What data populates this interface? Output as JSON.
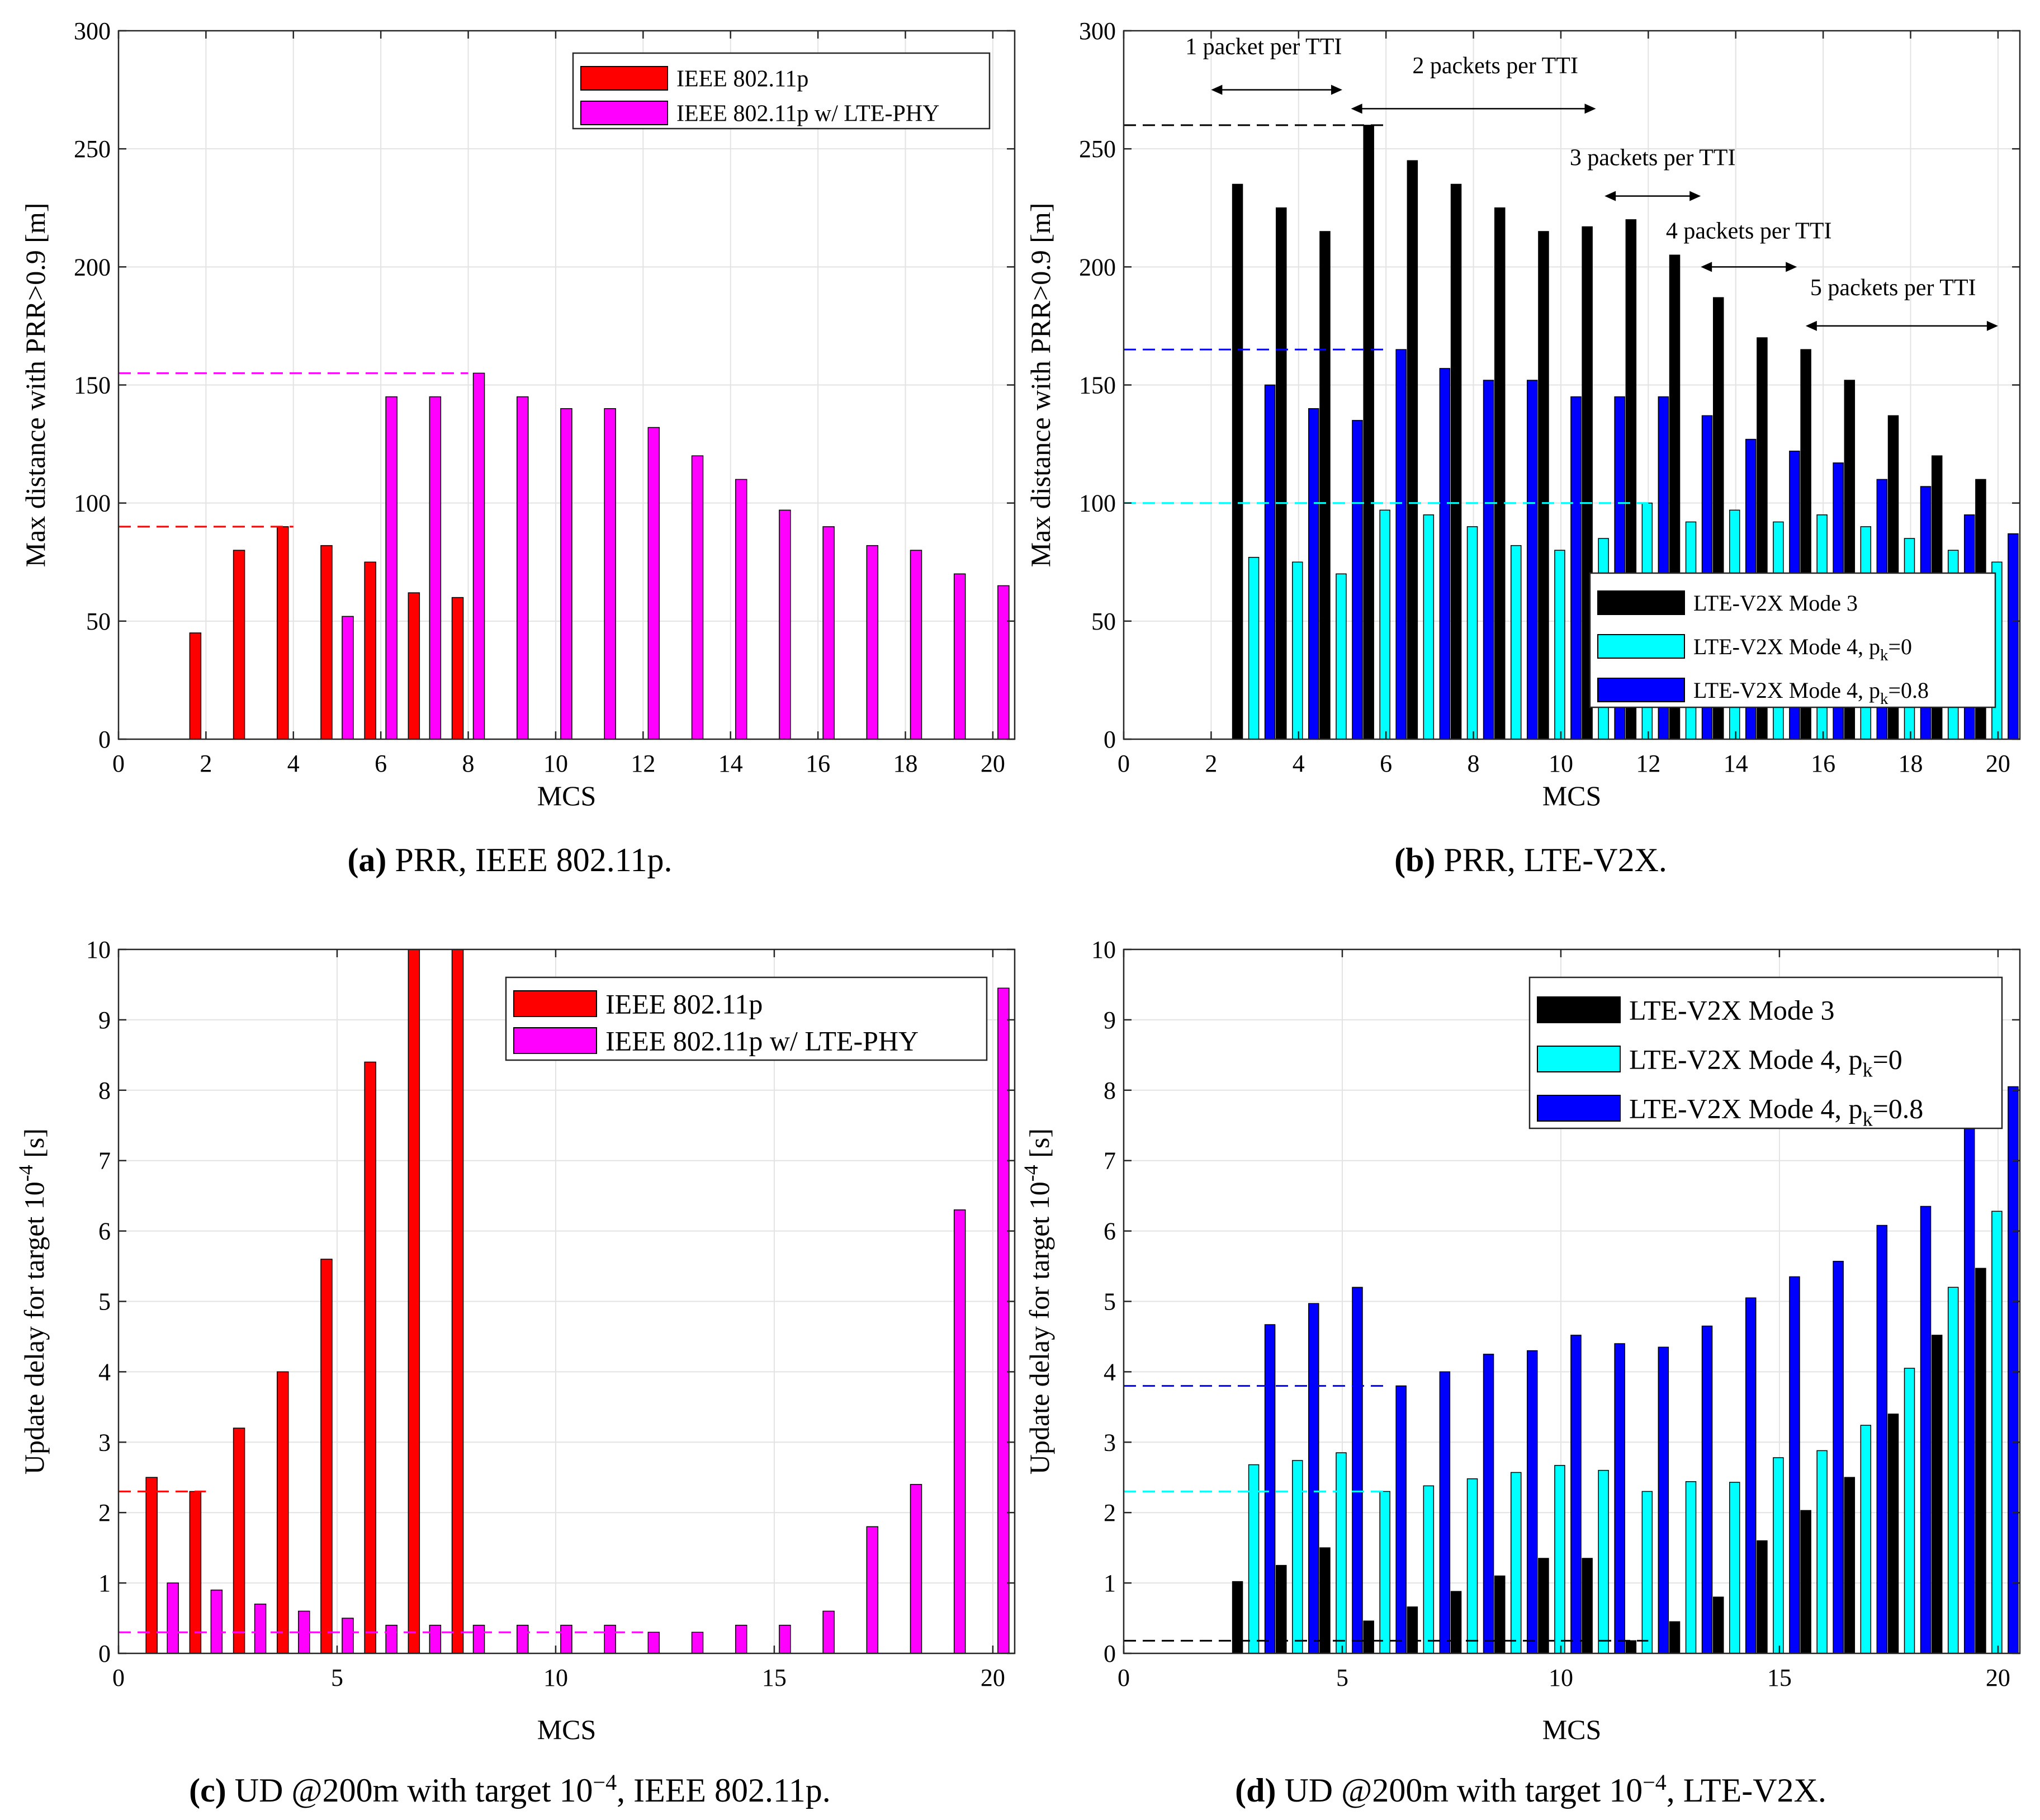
{
  "chart_data": [
    {
      "id": "a",
      "type": "bar",
      "caption": {
        "letter": "(a)",
        "text": "PRR, IEEE 802.11p."
      },
      "xlabel": "MCS",
      "ylabel": "Max distance with PRR>0.9 [m]",
      "xlim": [
        0,
        20.5
      ],
      "ylim": [
        0,
        300
      ],
      "xticks": [
        0,
        2,
        4,
        6,
        8,
        10,
        12,
        14,
        16,
        18,
        20
      ],
      "yticks": [
        0,
        50,
        100,
        150,
        200,
        250,
        300
      ],
      "grid": true,
      "legend_position": "top-right",
      "series": [
        {
          "name": "IEEE 802.11p",
          "color": "#ff0000",
          "x": [
            1,
            2,
            3,
            4,
            5,
            6,
            7,
            8
          ],
          "values": [
            0,
            45,
            80,
            90,
            82,
            75,
            62,
            60
          ]
        },
        {
          "name": "IEEE 802.11p w/ LTE-PHY",
          "color": "#ff00ff",
          "x": [
            1,
            2,
            3,
            4,
            5,
            6,
            7,
            8,
            9,
            10,
            11,
            12,
            13,
            14,
            15,
            16,
            17,
            18,
            19,
            20
          ],
          "values": [
            0,
            0,
            0,
            0,
            52,
            145,
            145,
            155,
            145,
            140,
            140,
            132,
            120,
            110,
            97,
            90,
            82,
            80,
            70,
            65
          ]
        }
      ],
      "reference_lines": [
        {
          "y": 155,
          "x_end": 8,
          "color": "#ff00ff"
        },
        {
          "y": 90,
          "x_end": 4,
          "color": "#ff0000"
        }
      ]
    },
    {
      "id": "b",
      "type": "bar",
      "caption": {
        "letter": "(b)",
        "text": "PRR, LTE-V2X."
      },
      "xlabel": "MCS",
      "ylabel": "Max distance with PRR>0.9 [m]",
      "xlim": [
        0,
        20.5
      ],
      "ylim": [
        0,
        300
      ],
      "xticks": [
        0,
        2,
        4,
        6,
        8,
        10,
        12,
        14,
        16,
        18,
        20
      ],
      "yticks": [
        0,
        50,
        100,
        150,
        200,
        250,
        300
      ],
      "grid": true,
      "legend_position": "bottom-right",
      "series": [
        {
          "name": "LTE-V2X Mode 3",
          "color": "#000000",
          "x": [
            3,
            4,
            5,
            6,
            7,
            8,
            9,
            10,
            11,
            12,
            13,
            14,
            15,
            16,
            17,
            18,
            19,
            20
          ],
          "values": [
            235,
            225,
            215,
            260,
            245,
            235,
            225,
            215,
            217,
            220,
            205,
            187,
            170,
            165,
            152,
            137,
            120,
            110
          ]
        },
        {
          "name": "LTE-V2X Mode 4, p_k=0",
          "color": "#00ffff",
          "x": [
            3,
            4,
            5,
            6,
            7,
            8,
            9,
            10,
            11,
            12,
            13,
            14,
            15,
            16,
            17,
            18,
            19,
            20
          ],
          "values": [
            77,
            75,
            70,
            97,
            95,
            90,
            82,
            80,
            85,
            100,
            92,
            97,
            92,
            95,
            90,
            85,
            80,
            75
          ]
        },
        {
          "name": "LTE-V2X Mode 4, p_k=0.8",
          "color": "#0000ff",
          "x": [
            3,
            4,
            5,
            6,
            7,
            8,
            9,
            10,
            11,
            12,
            13,
            14,
            15,
            16,
            17,
            18,
            19,
            20
          ],
          "values": [
            150,
            140,
            135,
            165,
            157,
            152,
            152,
            145,
            145,
            145,
            137,
            127,
            122,
            117,
            110,
            107,
            95,
            87
          ]
        }
      ],
      "reference_lines": [
        {
          "y": 260,
          "x_end": 6,
          "color": "#000000"
        },
        {
          "y": 165,
          "x_end": 6,
          "color": "#0000ff"
        },
        {
          "y": 100,
          "x_end": 12,
          "color": "#00ffff"
        }
      ],
      "annotations": [
        {
          "text": "1 packet per TTI",
          "label_x": 3.2,
          "label_y": 290,
          "arrow_x": [
            2,
            5
          ],
          "arrow_y": 275
        },
        {
          "text": "2 packets per TTI",
          "label_x": 8.5,
          "label_y": 282,
          "arrow_x": [
            5.2,
            10.8
          ],
          "arrow_y": 267
        },
        {
          "text": "3 packets per TTI",
          "label_x": 12.1,
          "label_y": 243,
          "arrow_x": [
            11,
            13.2
          ],
          "arrow_y": 230
        },
        {
          "text": "4 packets per TTI",
          "label_x": 14.3,
          "label_y": 212,
          "arrow_x": [
            13.2,
            15.4
          ],
          "arrow_y": 200
        },
        {
          "text": "5 packets per TTI",
          "label_x": 17.6,
          "label_y": 188,
          "arrow_x": [
            15.6,
            20
          ],
          "arrow_y": 175
        }
      ]
    },
    {
      "id": "c",
      "type": "bar",
      "caption": {
        "letter": "(c)",
        "text": "UD @200m with target 10",
        "sup": "−4",
        "tail": ", IEEE 802.11p."
      },
      "xlabel": "MCS",
      "ylabel": "Update delay for target 10",
      "ylabel_sup": "-4",
      "ylabel_tail": " [s]",
      "xlim": [
        0,
        20.5
      ],
      "ylim": [
        0,
        10
      ],
      "xticks": [
        0,
        5,
        10,
        15,
        20
      ],
      "yticks": [
        0,
        1,
        2,
        3,
        4,
        5,
        6,
        7,
        8,
        9,
        10
      ],
      "grid": true,
      "legend_position": "top-right",
      "series": [
        {
          "name": "IEEE 802.11p",
          "color": "#ff0000",
          "x": [
            1,
            2,
            3,
            4,
            5,
            6,
            7,
            8
          ],
          "values": [
            2.5,
            2.3,
            3.2,
            4.0,
            5.6,
            8.4,
            10,
            10
          ]
        },
        {
          "name": "IEEE 802.11p w/ LTE-PHY",
          "color": "#ff00ff",
          "x": [
            1,
            2,
            3,
            4,
            5,
            6,
            7,
            8,
            9,
            10,
            11,
            12,
            13,
            14,
            15,
            16,
            17,
            18,
            19,
            20
          ],
          "values": [
            1.0,
            0.9,
            0.7,
            0.6,
            0.5,
            0.4,
            0.4,
            0.4,
            0.4,
            0.4,
            0.4,
            0.3,
            0.3,
            0.4,
            0.4,
            0.6,
            1.8,
            2.4,
            6.3,
            9.45
          ]
        }
      ],
      "reference_lines": [
        {
          "y": 2.3,
          "x_end": 2,
          "color": "#ff0000"
        },
        {
          "y": 0.3,
          "x_end": 12,
          "color": "#ff00ff"
        }
      ]
    },
    {
      "id": "d",
      "type": "bar",
      "caption": {
        "letter": "(d)",
        "text": "UD @200m with target 10",
        "sup": "−4",
        "tail": ", LTE-V2X."
      },
      "xlabel": "MCS",
      "ylabel": "Update delay for target 10",
      "ylabel_sup": "-4",
      "ylabel_tail": " [s]",
      "xlim": [
        0,
        20.5
      ],
      "ylim": [
        0,
        10
      ],
      "xticks": [
        0,
        5,
        10,
        15,
        20
      ],
      "yticks": [
        0,
        1,
        2,
        3,
        4,
        5,
        6,
        7,
        8,
        9,
        10
      ],
      "grid": true,
      "legend_position": "top-right",
      "series": [
        {
          "name": "LTE-V2X Mode 3",
          "color": "#000000",
          "x": [
            3,
            4,
            5,
            6,
            7,
            8,
            9,
            10,
            11,
            12,
            13,
            14,
            15,
            16,
            17,
            18,
            19,
            20
          ],
          "values": [
            1.02,
            1.25,
            1.5,
            0.46,
            0.66,
            0.88,
            1.1,
            1.35,
            1.35,
            0.18,
            0.45,
            0.8,
            1.6,
            2.03,
            2.5,
            3.4,
            4.52,
            5.47
          ]
        },
        {
          "name": "LTE-V2X Mode 4, p_k=0",
          "color": "#00ffff",
          "x": [
            3,
            4,
            5,
            6,
            7,
            8,
            9,
            10,
            11,
            12,
            13,
            14,
            15,
            16,
            17,
            18,
            19,
            20
          ],
          "values": [
            2.68,
            2.74,
            2.85,
            2.3,
            2.38,
            2.48,
            2.57,
            2.67,
            2.6,
            2.3,
            2.44,
            2.43,
            2.78,
            2.88,
            3.24,
            4.05,
            5.2,
            6.28
          ]
        },
        {
          "name": "LTE-V2X Mode 4, p_k=0.8",
          "color": "#0000ff",
          "x": [
            3,
            4,
            5,
            6,
            7,
            8,
            9,
            10,
            11,
            12,
            13,
            14,
            15,
            16,
            17,
            18,
            19,
            20
          ],
          "values": [
            4.67,
            4.97,
            5.2,
            3.8,
            4.0,
            4.25,
            4.3,
            4.52,
            4.4,
            4.35,
            4.65,
            5.05,
            5.35,
            5.57,
            6.08,
            6.35,
            7.5,
            8.05
          ]
        }
      ],
      "reference_lines": [
        {
          "y": 3.8,
          "x_end": 6,
          "color": "#0000ff"
        },
        {
          "y": 2.3,
          "x_end": 6,
          "color": "#00ffff"
        },
        {
          "y": 0.18,
          "x_end": 12,
          "color": "#000000"
        }
      ]
    }
  ]
}
